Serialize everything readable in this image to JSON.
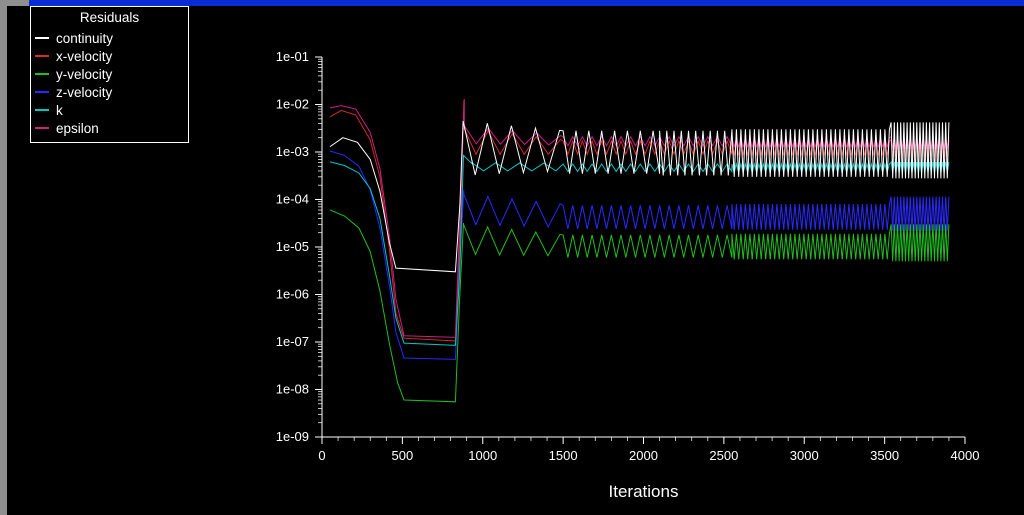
{
  "window": {
    "titlebar_color": "#0a2cd6",
    "frame_color": "#8f8f8f",
    "background_color": "#000000"
  },
  "legend": {
    "title": "Residuals",
    "entries": [
      {
        "label": "continuity",
        "color": "#ffffff"
      },
      {
        "label": "x-velocity",
        "color": "#d42a2a"
      },
      {
        "label": "y-velocity",
        "color": "#1fbf1f"
      },
      {
        "label": "z-velocity",
        "color": "#2929ff"
      },
      {
        "label": "k",
        "color": "#00c8c8"
      },
      {
        "label": "epsilon",
        "color": "#cc1f80"
      }
    ]
  },
  "chart_data": {
    "type": "line",
    "title": "Residuals",
    "xlabel": "Iterations",
    "ylabel": "",
    "background": "#000000",
    "grid": false,
    "legend_position": "top-left",
    "x_axis": {
      "min": 0,
      "max": 4000,
      "major_tick_step": 500,
      "minor_tick_step": 100,
      "tick_labels": [
        "0",
        "500",
        "1000",
        "1500",
        "2000",
        "2500",
        "3000",
        "3500",
        "4000"
      ]
    },
    "y_axis": {
      "scale": "log",
      "min": 1e-09,
      "max": 0.1,
      "tick_labels": [
        "1e-01",
        "1e-02",
        "1e-03",
        "1e-04",
        "1e-05",
        "1e-06",
        "1e-07",
        "1e-08",
        "1e-09"
      ]
    },
    "series": [
      {
        "name": "continuity",
        "color": "#ffffff",
        "z": 6,
        "segments": [
          {
            "type": "path",
            "points": [
              [
                50,
                0.0013
              ],
              [
                130,
                0.002
              ],
              [
                220,
                0.0016
              ],
              [
                300,
                0.0007
              ],
              [
                360,
                0.00015
              ],
              [
                420,
                1.2e-05
              ],
              [
                460,
                3.6e-06
              ],
              [
                830,
                3e-06
              ],
              [
                858,
                8e-05
              ],
              [
                878,
                0.0045
              ]
            ]
          },
          {
            "type": "band",
            "x0": 878,
            "x1": 1500,
            "top_start": 0.0045,
            "top_end": 0.0028,
            "bottom_start": 0.00032,
            "bottom_end": 0.0004,
            "period": 150
          },
          {
            "type": "band",
            "x0": 1500,
            "x1": 2100,
            "top_start": 0.0028,
            "top_end": 0.0028,
            "bottom_start": 0.00035,
            "bottom_end": 0.00035,
            "period": 80
          },
          {
            "type": "band",
            "x0": 2100,
            "x1": 2550,
            "top_start": 0.0028,
            "top_end": 0.0028,
            "bottom_start": 0.00032,
            "bottom_end": 0.00032,
            "period": 45
          },
          {
            "type": "band",
            "x0": 2550,
            "x1": 3540,
            "top_start": 0.003,
            "top_end": 0.003,
            "bottom_start": 0.0003,
            "bottom_end": 0.0003,
            "period": 28
          },
          {
            "type": "band",
            "x0": 3540,
            "x1": 3900,
            "top_start": 0.0042,
            "top_end": 0.0042,
            "bottom_start": 0.00028,
            "bottom_end": 0.00028,
            "period": 20
          }
        ]
      },
      {
        "name": "x-velocity",
        "color": "#d42a2a",
        "z": 1,
        "segments": [
          {
            "type": "path",
            "points": [
              [
                50,
                0.0055
              ],
              [
                120,
                0.0075
              ],
              [
                210,
                0.006
              ],
              [
                300,
                0.0018
              ],
              [
                360,
                0.0003
              ],
              [
                420,
                9e-06
              ],
              [
                460,
                4e-07
              ],
              [
                510,
                1.2e-07
              ],
              [
                830,
                1.05e-07
              ],
              [
                858,
                1.5e-05
              ],
              [
                883,
                0.0125
              ]
            ]
          },
          {
            "type": "band",
            "x0": 883,
            "x1": 1500,
            "top_start": 0.0032,
            "top_end": 0.0018,
            "bottom_start": 0.0009,
            "bottom_end": 0.0009,
            "period": 150
          },
          {
            "type": "band",
            "x0": 1500,
            "x1": 2550,
            "top_start": 0.0017,
            "top_end": 0.0017,
            "bottom_start": 0.0009,
            "bottom_end": 0.0009,
            "period": 60
          },
          {
            "type": "band",
            "x0": 2550,
            "x1": 3540,
            "top_start": 0.0017,
            "top_end": 0.0017,
            "bottom_start": 0.00085,
            "bottom_end": 0.00085,
            "period": 28
          },
          {
            "type": "band",
            "x0": 3540,
            "x1": 3900,
            "top_start": 0.0018,
            "top_end": 0.0018,
            "bottom_start": 0.0008,
            "bottom_end": 0.0008,
            "period": 20
          }
        ]
      },
      {
        "name": "y-velocity",
        "color": "#1fbf1f",
        "z": 2,
        "segments": [
          {
            "type": "path",
            "points": [
              [
                50,
                6e-05
              ],
              [
                140,
                4.5e-05
              ],
              [
                230,
                2.5e-05
              ],
              [
                300,
                8e-06
              ],
              [
                360,
                1.2e-06
              ],
              [
                420,
                9e-08
              ],
              [
                470,
                1.4e-08
              ],
              [
                510,
                6e-09
              ],
              [
                830,
                5.5e-09
              ],
              [
                856,
                8e-07
              ],
              [
                880,
                3.2e-05
              ]
            ]
          },
          {
            "type": "band",
            "x0": 880,
            "x1": 1500,
            "top_start": 3e-05,
            "top_end": 1.8e-05,
            "bottom_start": 7e-06,
            "bottom_end": 6.5e-06,
            "period": 150
          },
          {
            "type": "band",
            "x0": 1500,
            "x1": 2550,
            "top_start": 1.8e-05,
            "top_end": 1.8e-05,
            "bottom_start": 6e-06,
            "bottom_end": 6e-06,
            "period": 60
          },
          {
            "type": "band",
            "x0": 2550,
            "x1": 3540,
            "top_start": 1.9e-05,
            "top_end": 1.9e-05,
            "bottom_start": 5.5e-06,
            "bottom_end": 5.5e-06,
            "period": 28
          },
          {
            "type": "band",
            "x0": 3540,
            "x1": 3900,
            "top_start": 3e-05,
            "top_end": 3e-05,
            "bottom_start": 5e-06,
            "bottom_end": 5e-06,
            "period": 20
          }
        ]
      },
      {
        "name": "z-velocity",
        "color": "#2929ff",
        "z": 3,
        "segments": [
          {
            "type": "path",
            "points": [
              [
                50,
                0.00105
              ],
              [
                140,
                0.00085
              ],
              [
                230,
                0.0005
              ],
              [
                300,
                0.00016
              ],
              [
                360,
                2.5e-05
              ],
              [
                420,
                1.5e-06
              ],
              [
                460,
                1.6e-07
              ],
              [
                510,
                4.6e-08
              ],
              [
                830,
                4.3e-08
              ],
              [
                856,
                4e-06
              ],
              [
                882,
                0.00016
              ]
            ]
          },
          {
            "type": "band",
            "x0": 882,
            "x1": 1500,
            "top_start": 0.00013,
            "top_end": 8e-05,
            "bottom_start": 3e-05,
            "bottom_end": 2.6e-05,
            "period": 150
          },
          {
            "type": "band",
            "x0": 1500,
            "x1": 2550,
            "top_start": 7.5e-05,
            "top_end": 7.5e-05,
            "bottom_start": 2.4e-05,
            "bottom_end": 2.4e-05,
            "period": 60
          },
          {
            "type": "band",
            "x0": 2550,
            "x1": 3540,
            "top_start": 8e-05,
            "top_end": 8e-05,
            "bottom_start": 2.3e-05,
            "bottom_end": 2.3e-05,
            "period": 28
          },
          {
            "type": "band",
            "x0": 3540,
            "x1": 3900,
            "top_start": 0.000115,
            "top_end": 0.000115,
            "bottom_start": 2.2e-05,
            "bottom_end": 2.2e-05,
            "period": 20
          }
        ]
      },
      {
        "name": "k",
        "color": "#00c8c8",
        "z": 4,
        "segments": [
          {
            "type": "path",
            "points": [
              [
                50,
                0.00062
              ],
              [
                140,
                0.00052
              ],
              [
                230,
                0.00036
              ],
              [
                300,
                0.00017
              ],
              [
                360,
                4e-05
              ],
              [
                420,
                2.5e-06
              ],
              [
                460,
                3.2e-07
              ],
              [
                510,
                9.5e-08
              ],
              [
                830,
                8.5e-08
              ],
              [
                856,
                2.5e-06
              ],
              [
                880,
                0.00085
              ],
              [
                930,
                0.00058
              ]
            ]
          },
          {
            "type": "band",
            "x0": 930,
            "x1": 1500,
            "top_start": 0.0006,
            "top_end": 0.00058,
            "bottom_start": 0.0004,
            "bottom_end": 0.0004,
            "period": 150
          },
          {
            "type": "band",
            "x0": 1500,
            "x1": 2550,
            "top_start": 0.00056,
            "top_end": 0.00056,
            "bottom_start": 0.00039,
            "bottom_end": 0.00039,
            "period": 60
          },
          {
            "type": "band",
            "x0": 2550,
            "x1": 3540,
            "top_start": 0.00056,
            "top_end": 0.00056,
            "bottom_start": 0.00037,
            "bottom_end": 0.00037,
            "period": 28
          },
          {
            "type": "band",
            "x0": 3540,
            "x1": 3900,
            "top_start": 0.00062,
            "top_end": 0.00062,
            "bottom_start": 0.00036,
            "bottom_end": 0.00036,
            "period": 20
          }
        ]
      },
      {
        "name": "epsilon",
        "color": "#cc1f80",
        "z": 5,
        "segments": [
          {
            "type": "path",
            "points": [
              [
                50,
                0.0085
              ],
              [
                120,
                0.0095
              ],
              [
                210,
                0.008
              ],
              [
                300,
                0.0026
              ],
              [
                360,
                0.00045
              ],
              [
                420,
                1.6e-05
              ],
              [
                460,
                8e-07
              ],
              [
                510,
                1.35e-07
              ],
              [
                830,
                1.25e-07
              ],
              [
                856,
                3e-05
              ],
              [
                885,
                0.013
              ]
            ]
          },
          {
            "type": "band",
            "x0": 885,
            "x1": 1500,
            "top_start": 0.0036,
            "top_end": 0.0022,
            "bottom_start": 0.0015,
            "bottom_end": 0.0014,
            "period": 150
          },
          {
            "type": "band",
            "x0": 1500,
            "x1": 2550,
            "top_start": 0.0021,
            "top_end": 0.0021,
            "bottom_start": 0.00135,
            "bottom_end": 0.00135,
            "period": 60
          },
          {
            "type": "band",
            "x0": 2550,
            "x1": 3540,
            "top_start": 0.002,
            "top_end": 0.002,
            "bottom_start": 0.00125,
            "bottom_end": 0.00125,
            "period": 28
          },
          {
            "type": "band",
            "x0": 3540,
            "x1": 3900,
            "top_start": 0.0021,
            "top_end": 0.0021,
            "bottom_start": 0.00115,
            "bottom_end": 0.00115,
            "period": 20
          }
        ]
      }
    ]
  }
}
